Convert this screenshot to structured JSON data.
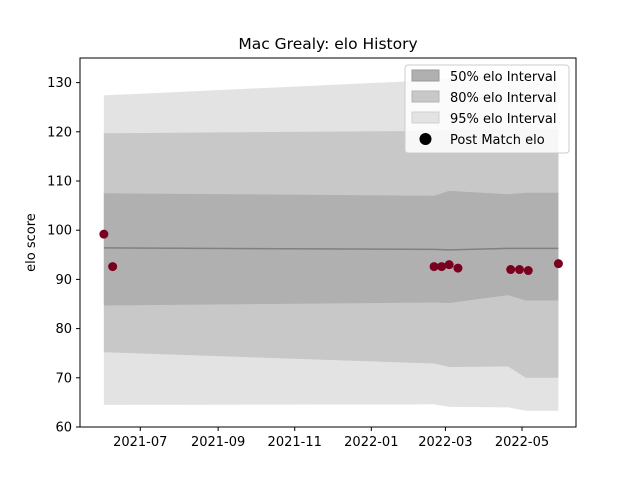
{
  "chart_data": {
    "type": "area",
    "title": "Mac Grealy: elo History",
    "xlabel": "",
    "ylabel": "elo score",
    "ylim": [
      60,
      135
    ],
    "xlim": [
      "2021-05-14",
      "2022-06-13"
    ],
    "x_ticks": [
      {
        "date": "2021-07-01",
        "label": "2021-07"
      },
      {
        "date": "2021-09-01",
        "label": "2021-09"
      },
      {
        "date": "2021-11-01",
        "label": "2021-11"
      },
      {
        "date": "2022-01-01",
        "label": "2022-01"
      },
      {
        "date": "2022-03-01",
        "label": "2022-03"
      },
      {
        "date": "2022-05-01",
        "label": "2022-05"
      }
    ],
    "y_ticks": [
      60,
      70,
      80,
      90,
      100,
      110,
      120,
      130
    ],
    "legend": {
      "position": "top-right",
      "entries": [
        "50% elo Interval",
        "80% elo Interval",
        "95% elo Interval",
        "Post Match elo"
      ]
    },
    "colors": {
      "band50": "#b0b0b0",
      "band80": "#c8c8c8",
      "band95": "#e3e3e3",
      "mean_line": "#808080",
      "points": "#7a0020"
    },
    "mean": {
      "x": [
        "2021-06-02",
        "2022-02-20",
        "2022-03-04",
        "2022-04-20",
        "2022-05-04",
        "2022-05-30"
      ],
      "y": [
        96.4,
        96.1,
        96.0,
        96.3,
        96.3,
        96.3
      ]
    },
    "series": [
      {
        "name": "50% elo Interval",
        "x": [
          "2021-06-02",
          "2022-02-20",
          "2022-03-04",
          "2022-04-20",
          "2022-05-04",
          "2022-05-30"
        ],
        "lower": [
          84.7,
          85.3,
          85.2,
          86.8,
          85.7,
          85.7
        ],
        "upper": [
          107.5,
          107.0,
          108.0,
          107.3,
          107.6,
          107.6
        ]
      },
      {
        "name": "80% elo Interval",
        "x": [
          "2021-06-02",
          "2022-02-20",
          "2022-03-04",
          "2022-04-20",
          "2022-05-04",
          "2022-05-30"
        ],
        "lower": [
          75.2,
          72.9,
          72.2,
          72.3,
          70.0,
          70.0
        ],
        "upper": [
          119.7,
          120.2,
          120.5,
          120.5,
          120.5,
          120.5
        ]
      },
      {
        "name": "95% elo Interval",
        "x": [
          "2021-06-02",
          "2022-02-20",
          "2022-03-04",
          "2022-04-20",
          "2022-05-04",
          "2022-05-30"
        ],
        "lower": [
          64.5,
          64.6,
          64.1,
          64.0,
          63.3,
          63.3
        ],
        "upper": [
          127.4,
          130.5,
          131.0,
          131.0,
          131.2,
          131.2
        ]
      }
    ],
    "points": {
      "name": "Post Match elo",
      "x": [
        "2021-06-02",
        "2021-06-09",
        "2022-02-20",
        "2022-02-26",
        "2022-03-04",
        "2022-03-11",
        "2022-04-22",
        "2022-04-29",
        "2022-05-06",
        "2022-05-30"
      ],
      "y": [
        99.2,
        92.6,
        92.6,
        92.6,
        93.0,
        92.3,
        92.0,
        92.0,
        91.8,
        93.2
      ]
    }
  }
}
